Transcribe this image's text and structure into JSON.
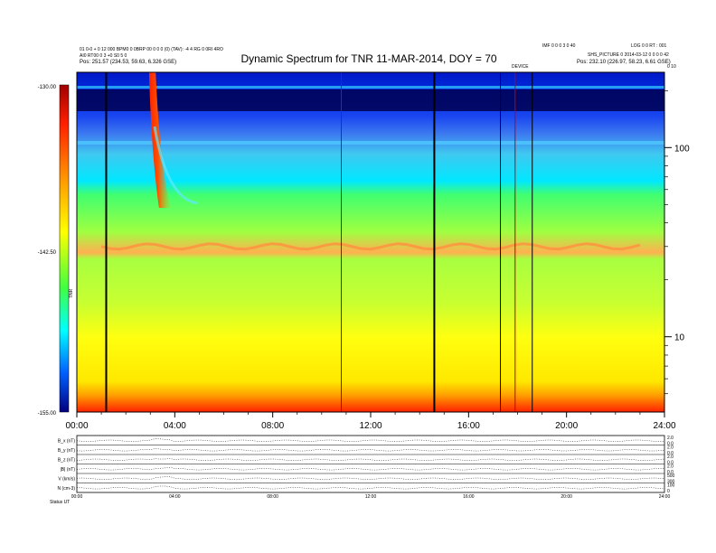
{
  "chart_data": {
    "type": "heatmap",
    "title": "Dynamic Spectrum for TNR 11-MAR-2014, DOY = 70",
    "header_left": [
      "01 0-0 + 0 12 000 BPM0 0 0BRP 00 0 0 0 (0) (TAV): -4 4 RG 0 0RI 4RO",
      "AI0 RT00 0 3 +0 S0 5 0",
      "Pos:   251.57 (234.53, 59.63, 6.326 GSE)"
    ],
    "header_right": [
      "IMF 0 0 0 3 0 40",
      "LOG 0 0 RT : 001",
      "SHS_PICTURE 0 2014-03-12 0 0 0 0 42",
      "Pos:   232.10 (226.97, 58.23, 6.61 GSE)"
    ],
    "header_center_label": "DEVICE",
    "corner_label": "0 10",
    "colorbar": {
      "ticks": [
        "-130.00",
        "-142.50",
        "-155.00"
      ],
      "label": "TNR",
      "range": [
        -155.0,
        -130.0
      ]
    },
    "x_axis": {
      "range_hours": [
        0,
        24
      ],
      "tick_labels": [
        "00:00",
        "04:00",
        "08:00",
        "12:00",
        "16:00",
        "20:00",
        "24:00"
      ]
    },
    "y_axis_right": {
      "scale": "log",
      "range_khz": [
        4,
        250
      ],
      "tick_labels": [
        "100",
        "10"
      ],
      "tick_values": [
        100,
        10
      ]
    },
    "features": [
      {
        "type": "type-III-burst",
        "start_hour": 2.95,
        "width_hours": 0.9
      },
      {
        "type": "plasma-line",
        "approx_khz": 30
      }
    ],
    "vertical_lines_hours": [
      1.2,
      10.8,
      14.6,
      17.3,
      17.9,
      18.6
    ],
    "panels": [
      {
        "label": "B_x (nT)",
        "scale": [
          "2.0",
          "0.0"
        ]
      },
      {
        "label": "B_y (nT)",
        "scale": [
          "2.0",
          "0.0"
        ]
      },
      {
        "label": "B_z (nT)",
        "scale": [
          "2.0",
          "0.0"
        ]
      },
      {
        "label": "|B| (nT)",
        "scale": [
          "2.0",
          "0.0"
        ]
      },
      {
        "label": "V (km/s)",
        "scale": [
          "500",
          "300"
        ]
      },
      {
        "label": "N (cm-3)",
        "scale": [
          "100",
          "0"
        ]
      }
    ],
    "bottom_ticks": [
      "00:00",
      "04:00",
      "08:00",
      "12:00",
      "16:00",
      "20:00",
      "24:00"
    ],
    "bottom_label": "Status   UT"
  }
}
